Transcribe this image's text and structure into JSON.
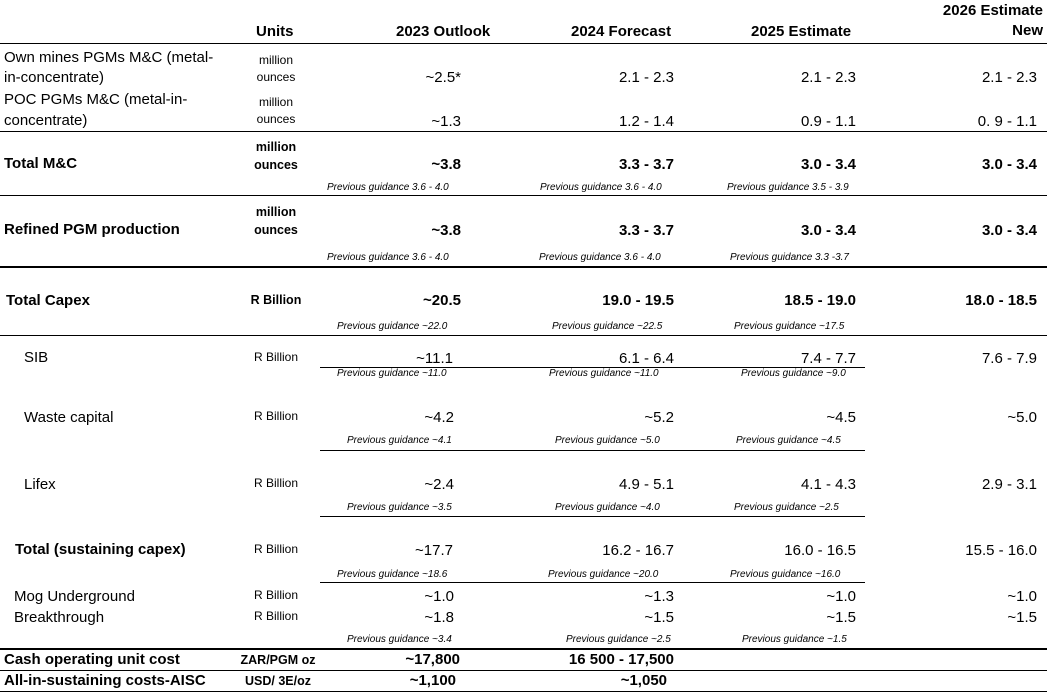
{
  "headers": {
    "units": "Units",
    "y2023": "2023 Outlook",
    "y2024": "2024 Forecast",
    "y2025": "2025 Estimate",
    "y2026_l1": "2026 Estimate",
    "y2026_l2": "New"
  },
  "rows": [
    {
      "label_l1": "Own mines PGMs M&C (metal-",
      "label_l2": "in-concentrate)",
      "units_l1": "million",
      "units_l2": "ounces",
      "v2023": "~2.5*",
      "v2024": "2.1 - 2.3",
      "v2025": "2.1 - 2.3",
      "v2026": "2.1 - 2.3"
    },
    {
      "label_l1": "POC PGMs M&C (metal-in-",
      "label_l2": "concentrate)",
      "units_l1": "million",
      "units_l2": "ounces",
      "v2023": "~1.3",
      "v2024": "1.2 - 1.4",
      "v2025": "0.9 - 1.1",
      "v2026": "0. 9 - 1.1"
    },
    {
      "label": "Total  M&C",
      "units_l1": "million",
      "units_l2": "ounces",
      "v2023": "~3.8",
      "v2024": "3.3 - 3.7",
      "v2025": "3.0 - 3.4",
      "v2026": "3.0 - 3.4",
      "p2023": "Previous guidance 3.6 - 4.0",
      "p2024": "Previous guidance 3.6 - 4.0",
      "p2025": "Previous guidance 3.5 - 3.9"
    },
    {
      "label": "Refined PGM production",
      "units_l1": "million",
      "units_l2": "ounces",
      "v2023": "~3.8",
      "v2024": "3.3 - 3.7",
      "v2025": "3.0 - 3.4",
      "v2026": "3.0 - 3.4",
      "p2023": "Previous guidance 3.6 - 4.0",
      "p2024": "Previous guidance 3.6 - 4.0",
      "p2025": "Previous guidance 3.3 -3.7"
    },
    {
      "label": "Total Capex",
      "units": "R Billion",
      "v2023": "~20.5",
      "v2024": "19.0 - 19.5",
      "v2025": "18.5 - 19.0",
      "v2026": "18.0 - 18.5",
      "p2023": "Previous guidance ~22.0",
      "p2024": "Previous guidance ~22.5",
      "p2025": "Previous guidance ~17.5"
    },
    {
      "label": "SIB",
      "units": "R Billion",
      "v2023": "~11.1",
      "v2024": "6.1 - 6.4",
      "v2025": "7.4 - 7.7",
      "v2026": "7.6 - 7.9",
      "p2023": "Previous guidance ~11.0",
      "p2024": "Previous guidance ~11.0",
      "p2025": "Previous guidance ~9.0"
    },
    {
      "label": "Waste capital",
      "units": "R Billion",
      "v2023": "~4.2",
      "v2024": "~5.2",
      "v2025": "~4.5",
      "v2026": "~5.0",
      "p2023": "Previous guidance ~4.1",
      "p2024": "Previous guidance ~5.0",
      "p2025": "Previous guidance ~4.5"
    },
    {
      "label": "Lifex",
      "units": "R Billion",
      "v2023": "~2.4",
      "v2024": "4.9 - 5.1",
      "v2025": "4.1 - 4.3",
      "v2026": "2.9 - 3.1",
      "p2023": "Previous guidance ~3.5",
      "p2024": "Previous guidance ~4.0",
      "p2025": "Previous guidance ~2.5"
    },
    {
      "label": "Total (sustaining capex)",
      "units": "R Billion",
      "v2023": "~17.7",
      "v2024": "16.2 - 16.7",
      "v2025": "16.0 - 16.5",
      "v2026": "15.5 - 16.0",
      "p2023": "Previous guidance ~18.6",
      "p2024": "Previous guidance ~20.0",
      "p2025": "Previous guidance ~16.0"
    },
    {
      "label": "Mog Underground",
      "units": "R Billion",
      "v2023": "~1.0",
      "v2024": "~1.3",
      "v2025": "~1.0",
      "v2026": "~1.0"
    },
    {
      "label": "Breakthrough",
      "units": "R Billion",
      "v2023": "~1.8",
      "v2024": "~1.5",
      "v2025": "~1.5",
      "v2026": "~1.5",
      "p2023": "Previous guidance ~3.4",
      "p2024": "Previous guidance ~2.5",
      "p2025": "Previous guidance ~1.5"
    },
    {
      "label": "Cash operating unit cost",
      "units": "ZAR/PGM oz",
      "v2023": "~17,800",
      "v2024": "16 500 - 17,500"
    },
    {
      "label": "All-in-sustaining costs-AISC",
      "units": "USD/ 3E/oz",
      "v2023": "~1,100",
      "v2024": "~1,050"
    }
  ]
}
